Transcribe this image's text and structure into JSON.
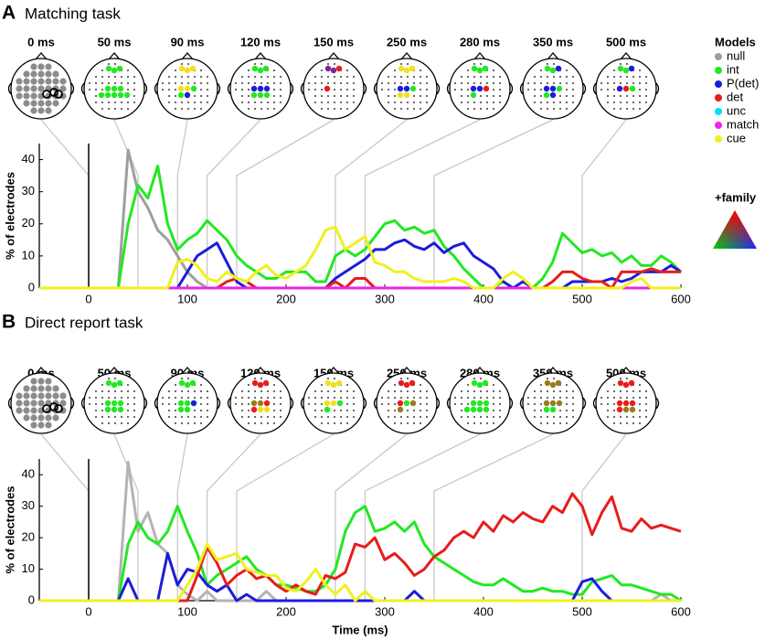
{
  "figure": {
    "legend_title": "Models",
    "family_label": "+family"
  },
  "chart_data": [
    {
      "type": "line",
      "panel": "A",
      "title": "Matching task",
      "ylabel": "% of electrodes",
      "topomaps": [
        {
          "value": 0,
          "label": "0 ms"
        },
        {
          "value": 50,
          "label": "50 ms"
        },
        {
          "value": 90,
          "label": "90 ms"
        },
        {
          "value": 120,
          "label": "120 ms"
        },
        {
          "value": 150,
          "label": "150 ms"
        },
        {
          "value": 250,
          "label": "250 ms"
        },
        {
          "value": 280,
          "label": "280 ms"
        },
        {
          "value": 350,
          "label": "350 ms"
        },
        {
          "value": 500,
          "label": "500 ms"
        }
      ],
      "xlim": [
        -50,
        600
      ],
      "xticks": [
        0,
        100,
        200,
        300,
        400,
        500,
        600
      ],
      "ylim": [
        0,
        45
      ],
      "yticks": [
        0,
        10,
        20,
        30,
        40
      ],
      "x": [
        -50,
        -40,
        -30,
        -20,
        -10,
        0,
        10,
        20,
        30,
        40,
        50,
        60,
        70,
        80,
        90,
        100,
        110,
        120,
        130,
        140,
        150,
        160,
        170,
        180,
        190,
        200,
        210,
        220,
        230,
        240,
        250,
        260,
        270,
        280,
        290,
        300,
        310,
        320,
        330,
        340,
        350,
        360,
        370,
        380,
        390,
        400,
        410,
        420,
        430,
        440,
        450,
        460,
        470,
        480,
        490,
        500,
        510,
        520,
        530,
        540,
        550,
        560,
        570,
        580,
        590,
        600
      ],
      "series": [
        {
          "name": "null",
          "color": "#9e9e9e",
          "values": [
            0,
            0,
            0,
            0,
            0,
            0,
            0,
            0,
            0,
            43,
            30,
            25,
            18,
            15,
            10,
            5,
            2,
            0,
            0,
            0,
            0,
            0,
            0,
            0,
            0,
            0,
            0,
            0,
            0,
            0,
            0,
            0,
            0,
            0,
            0,
            0,
            0,
            0,
            0,
            0,
            0,
            0,
            0,
            0,
            0,
            0,
            0,
            0,
            0,
            0,
            0,
            0,
            0,
            0,
            0,
            0,
            0,
            0,
            0,
            0,
            0,
            0,
            0,
            0,
            0,
            0
          ]
        },
        {
          "name": "int",
          "color": "#22e822",
          "values": [
            0,
            0,
            0,
            0,
            0,
            0,
            0,
            0,
            0,
            20,
            32,
            28,
            38,
            20,
            12,
            15,
            17,
            21,
            18,
            15,
            10,
            7,
            5,
            3,
            3,
            5,
            5,
            5,
            2,
            2,
            10,
            12,
            10,
            12,
            16,
            20,
            21,
            18,
            19,
            17,
            18,
            13,
            10,
            6,
            3,
            0,
            0,
            2,
            0,
            0,
            0,
            3,
            8,
            17,
            14,
            11,
            12,
            10,
            11,
            8,
            10,
            7,
            7,
            10,
            8,
            5
          ]
        },
        {
          "name": "P(det)",
          "color": "#1c1cdc",
          "values": [
            0,
            0,
            0,
            0,
            0,
            0,
            0,
            0,
            0,
            0,
            0,
            0,
            0,
            0,
            0,
            5,
            10,
            12,
            14,
            8,
            2,
            0,
            0,
            0,
            0,
            0,
            0,
            0,
            0,
            0,
            3,
            5,
            7,
            9,
            12,
            12,
            14,
            15,
            13,
            12,
            14,
            11,
            13,
            14,
            10,
            8,
            6,
            2,
            0,
            2,
            0,
            0,
            0,
            0,
            2,
            2,
            2,
            2,
            3,
            2,
            3,
            5,
            5,
            5,
            7,
            5
          ]
        },
        {
          "name": "det",
          "color": "#e81c1c",
          "values": [
            0,
            0,
            0,
            0,
            0,
            0,
            0,
            0,
            0,
            0,
            0,
            0,
            0,
            0,
            0,
            0,
            0,
            0,
            0,
            2,
            3,
            2,
            0,
            0,
            0,
            0,
            0,
            0,
            0,
            0,
            2,
            0,
            3,
            3,
            0,
            0,
            0,
            0,
            0,
            0,
            0,
            0,
            0,
            0,
            0,
            0,
            0,
            0,
            0,
            0,
            0,
            0,
            2,
            5,
            5,
            3,
            2,
            2,
            0,
            5,
            5,
            5,
            6,
            5,
            5,
            5
          ]
        },
        {
          "name": "unc",
          "color": "#00e0f0",
          "values": [
            0,
            0,
            0,
            0,
            0,
            0,
            0,
            0,
            0,
            0,
            0,
            0,
            0,
            0,
            0,
            0,
            0,
            0,
            0,
            0,
            0,
            0,
            0,
            0,
            0,
            0,
            0,
            0,
            0,
            0,
            0,
            0,
            0,
            0,
            0,
            0,
            0,
            0,
            0,
            0,
            0,
            0,
            0,
            0,
            0,
            0,
            0,
            0,
            0,
            0,
            0,
            0,
            0,
            0,
            0,
            0,
            0,
            0,
            0,
            0,
            0,
            0,
            0,
            0,
            0,
            0
          ]
        },
        {
          "name": "match",
          "color": "#ee22ee",
          "values": [
            0,
            0,
            0,
            0,
            0,
            0,
            0,
            0,
            0,
            0,
            0,
            0,
            0,
            0,
            0,
            0,
            0,
            0,
            0,
            0,
            0,
            0,
            0,
            0,
            0,
            0,
            0,
            0,
            0,
            0,
            0,
            0,
            0,
            0,
            0,
            0,
            0,
            0,
            0,
            0,
            0,
            0,
            0,
            0,
            0,
            0,
            0,
            0,
            0,
            0,
            0,
            0,
            0,
            0,
            0,
            0,
            0,
            0,
            0,
            0,
            0,
            0,
            0,
            0,
            0,
            0
          ]
        },
        {
          "name": "cue",
          "color": "#f0f020",
          "values": [
            0,
            0,
            0,
            0,
            0,
            0,
            0,
            0,
            0,
            0,
            0,
            0,
            0,
            0,
            8,
            9,
            7,
            3,
            2,
            5,
            3,
            2,
            5,
            7,
            4,
            3,
            5,
            7,
            12,
            18,
            19,
            12,
            14,
            16,
            8,
            7,
            5,
            5,
            3,
            2,
            2,
            2,
            3,
            2,
            0,
            0,
            0,
            3,
            5,
            3,
            0,
            0,
            0,
            0,
            0,
            0,
            0,
            0,
            0,
            0,
            2,
            3,
            0,
            0,
            0,
            0
          ]
        }
      ]
    },
    {
      "type": "line",
      "panel": "B",
      "title": "Direct report task",
      "ylabel": "% of electrodes",
      "xlabel": "Time (ms)",
      "topomaps": [
        {
          "value": 0,
          "label": "0 ms"
        },
        {
          "value": 50,
          "label": "50 ms"
        },
        {
          "value": 90,
          "label": "90 ms"
        },
        {
          "value": 120,
          "label": "120 ms"
        },
        {
          "value": 150,
          "label": "150 ms"
        },
        {
          "value": 250,
          "label": "250 ms"
        },
        {
          "value": 280,
          "label": "280 ms"
        },
        {
          "value": 350,
          "label": "350 ms"
        },
        {
          "value": 500,
          "label": "500 ms"
        }
      ],
      "xlim": [
        -50,
        600
      ],
      "xticks": [
        0,
        100,
        200,
        300,
        400,
        500,
        600
      ],
      "ylim": [
        0,
        45
      ],
      "yticks": [
        0,
        10,
        20,
        30,
        40
      ],
      "x": [
        -50,
        -40,
        -30,
        -20,
        -10,
        0,
        10,
        20,
        30,
        40,
        50,
        60,
        70,
        80,
        90,
        100,
        110,
        120,
        130,
        140,
        150,
        160,
        170,
        180,
        190,
        200,
        210,
        220,
        230,
        240,
        250,
        260,
        270,
        280,
        290,
        300,
        310,
        320,
        330,
        340,
        350,
        360,
        370,
        380,
        390,
        400,
        410,
        420,
        430,
        440,
        450,
        460,
        470,
        480,
        490,
        500,
        510,
        520,
        530,
        540,
        550,
        560,
        570,
        580,
        590,
        600
      ],
      "series": [
        {
          "color": "#b4b4b4",
          "values": [
            0,
            0,
            0,
            0,
            0,
            0,
            0,
            0,
            0,
            44,
            22,
            28,
            18,
            15,
            5,
            2,
            0,
            3,
            0,
            0,
            0,
            0,
            0,
            3,
            0,
            0,
            0,
            0,
            0,
            0,
            0,
            0,
            0,
            0,
            0,
            0,
            0,
            0,
            0,
            0,
            0,
            0,
            0,
            0,
            0,
            0,
            0,
            0,
            0,
            0,
            0,
            0,
            0,
            0,
            0,
            0,
            0,
            0,
            0,
            0,
            0,
            0,
            0,
            2,
            0,
            0
          ]
        },
        {
          "color": "#22e822",
          "values": [
            0,
            0,
            0,
            0,
            0,
            0,
            0,
            0,
            0,
            18,
            25,
            20,
            18,
            22,
            30,
            22,
            15,
            5,
            8,
            10,
            12,
            14,
            10,
            8,
            5,
            5,
            4,
            3,
            3,
            5,
            10,
            22,
            28,
            30,
            22,
            23,
            25,
            22,
            25,
            18,
            14,
            12,
            10,
            8,
            6,
            5,
            5,
            7,
            5,
            3,
            3,
            4,
            3,
            3,
            2,
            2,
            6,
            7,
            8,
            5,
            5,
            4,
            3,
            2,
            2,
            0
          ]
        },
        {
          "color": "#1c1cdc",
          "values": [
            0,
            0,
            0,
            0,
            0,
            0,
            0,
            0,
            0,
            7,
            0,
            0,
            0,
            15,
            5,
            10,
            9,
            5,
            3,
            5,
            0,
            2,
            0,
            0,
            0,
            0,
            0,
            0,
            0,
            0,
            0,
            0,
            0,
            0,
            0,
            0,
            0,
            0,
            3,
            0,
            0,
            0,
            0,
            0,
            0,
            0,
            0,
            0,
            0,
            0,
            0,
            0,
            0,
            0,
            0,
            6,
            7,
            3,
            0,
            0,
            0,
            0,
            0,
            0,
            0,
            0
          ]
        },
        {
          "color": "#e81c1c",
          "values": [
            0,
            0,
            0,
            0,
            0,
            0,
            0,
            0,
            0,
            0,
            0,
            0,
            0,
            0,
            0,
            0,
            8,
            17,
            12,
            5,
            8,
            10,
            7,
            8,
            5,
            3,
            5,
            3,
            2,
            8,
            7,
            9,
            18,
            17,
            20,
            13,
            15,
            12,
            8,
            10,
            14,
            16,
            20,
            22,
            20,
            25,
            22,
            27,
            25,
            28,
            26,
            25,
            30,
            28,
            34,
            30,
            21,
            28,
            33,
            23,
            22,
            26,
            23,
            24,
            23,
            22
          ]
        },
        {
          "color": "#f0f020",
          "values": [
            0,
            0,
            0,
            0,
            0,
            0,
            0,
            0,
            0,
            0,
            0,
            0,
            0,
            0,
            0,
            5,
            10,
            18,
            13,
            14,
            15,
            10,
            9,
            8,
            8,
            4,
            3,
            6,
            10,
            5,
            2,
            5,
            0,
            3,
            0,
            0,
            0,
            0,
            0,
            0,
            0,
            0,
            0,
            0,
            0,
            0,
            0,
            0,
            0,
            0,
            0,
            0,
            0,
            0,
            0,
            0,
            0,
            0,
            0,
            0,
            0,
            0,
            0,
            0,
            0,
            0
          ]
        }
      ]
    }
  ]
}
